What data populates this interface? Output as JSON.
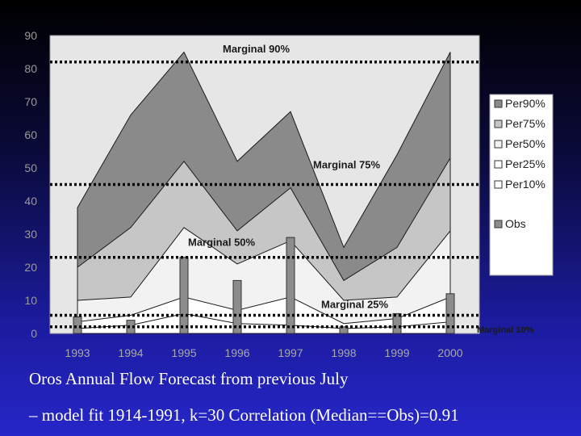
{
  "chart_data": {
    "type": "area",
    "categories": [
      "1993",
      "1994",
      "1995",
      "1996",
      "1997",
      "1998",
      "1999",
      "2000"
    ],
    "series": [
      {
        "name": "Per90%",
        "values": [
          38,
          66,
          85,
          52,
          67,
          26,
          54,
          85
        ],
        "color": "#8a8a8a"
      },
      {
        "name": "Per75%",
        "values": [
          20,
          32,
          52,
          31,
          44,
          16,
          26,
          53
        ],
        "color": "#c6c6c6"
      },
      {
        "name": "Per50%",
        "values": [
          10,
          11,
          32,
          21,
          28,
          10,
          11,
          31
        ],
        "color": "#f2f2f2"
      },
      {
        "name": "Per25%",
        "values": [
          3.5,
          5.5,
          11,
          7,
          11,
          3,
          4.5,
          11
        ],
        "color": "#ffffff"
      },
      {
        "name": "Per10%",
        "values": [
          1.5,
          2.5,
          6,
          3,
          2.5,
          1.5,
          2,
          3.5
        ],
        "color": "#ffffff"
      }
    ],
    "obs": {
      "name": "Obs",
      "values": [
        5,
        4,
        23,
        16,
        29,
        2,
        6,
        12
      ],
      "color": "#8c8c8c"
    },
    "marginals": [
      {
        "label": "Marginal 90%",
        "value": 82
      },
      {
        "label": "Marginal 75%",
        "value": 45
      },
      {
        "label": "Marginal 50%",
        "value": 23
      },
      {
        "label": "Marginal 25%",
        "value": 5.5
      },
      {
        "label": "Marginal 10%",
        "value": 2
      }
    ],
    "ylim": [
      0,
      90
    ],
    "yticks": [
      0,
      10,
      20,
      30,
      40,
      50,
      60,
      70,
      80,
      90
    ],
    "legend_position": "right"
  },
  "captions": {
    "line1": "Oros Annual Flow Forecast from previous July",
    "line2": "– model fit 1914-1991, k=30  Correlation (Median==Obs)=0.91"
  }
}
